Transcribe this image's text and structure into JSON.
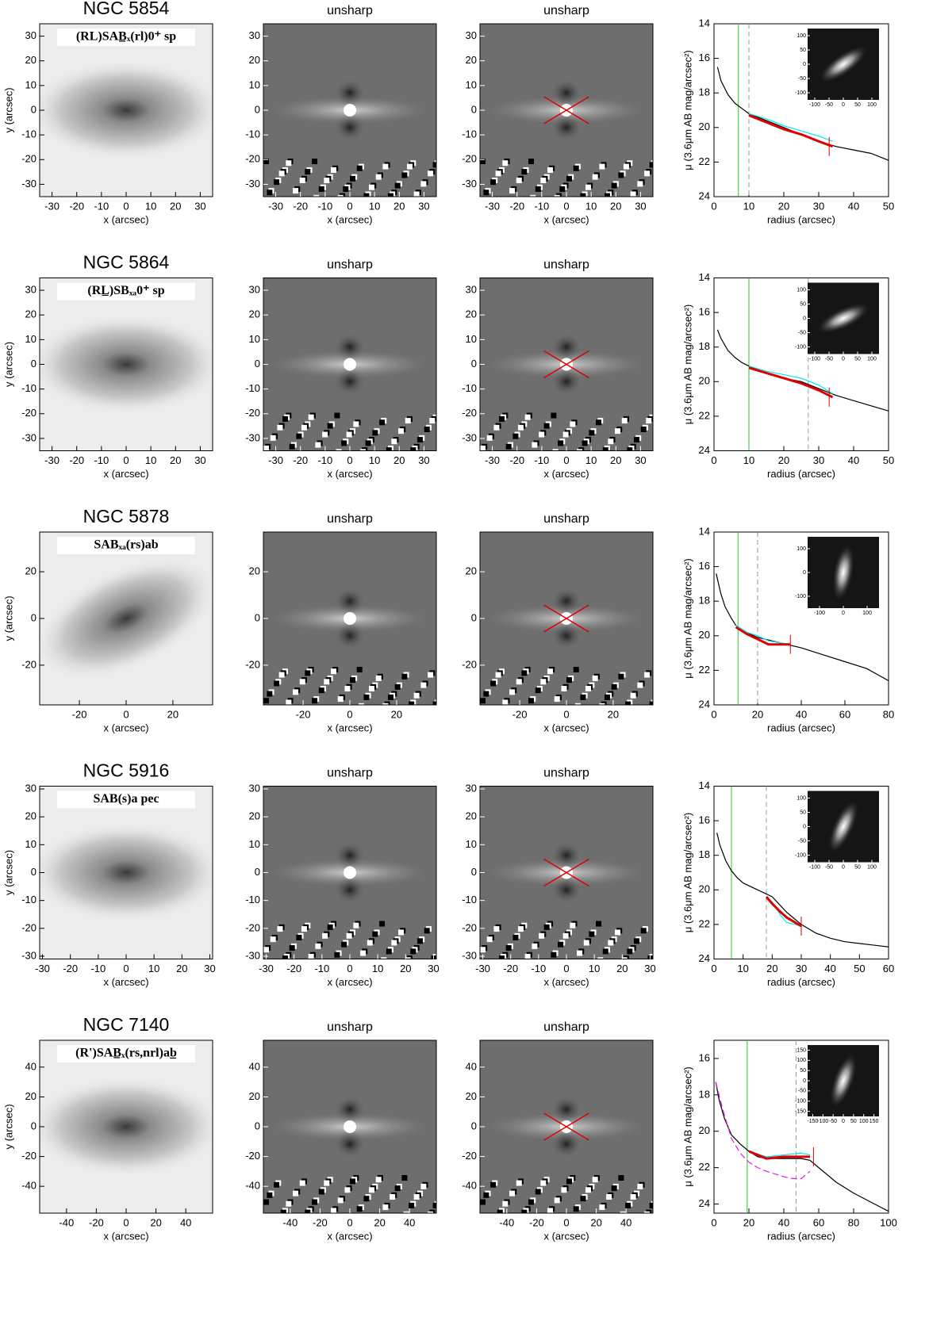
{
  "labels": {
    "unsharp": "unsharp",
    "x_axis": "x (arcsec)",
    "y_axis": "y (arcsec)",
    "radius_axis": "radius (arcsec)",
    "mu_axis": "μ (3.6μm AB mag/arcsec²)"
  },
  "rows": [
    {
      "name": "NGC 5854",
      "classification": "(RL)SAB̲ₓ(rl)0⁺ sp",
      "image": {
        "lim": [
          -35,
          35
        ],
        "ticks": [
          -30,
          -20,
          -10,
          0,
          10,
          20,
          30
        ]
      },
      "profile": {
        "xlim": [
          0,
          50
        ],
        "xticks": [
          0,
          10,
          20,
          30,
          40,
          50
        ],
        "ylim": [
          24,
          14
        ],
        "yticks": [
          14,
          16,
          18,
          20,
          22,
          24
        ],
        "green_line": 7,
        "dashed_line": 10,
        "marker": {
          "x": 33,
          "y": 21.1
        },
        "series": [
          {
            "color": "#000000",
            "x": [
              1,
              2,
              4,
              6,
              8,
              10,
              15,
              20,
              25,
              30,
              35,
              40,
              45,
              50
            ],
            "values": [
              16.5,
              17.3,
              18.1,
              18.6,
              18.9,
              19.2,
              19.6,
              20.0,
              20.4,
              20.8,
              21.1,
              21.3,
              21.5,
              21.9
            ]
          },
          {
            "color": "#00e5ee",
            "x": [
              10,
              15,
              20,
              25,
              30,
              34
            ],
            "values": [
              19.2,
              19.5,
              19.9,
              20.2,
              20.5,
              20.8
            ]
          },
          {
            "color": "#e00000",
            "x": [
              10,
              15,
              20,
              25,
              30,
              34
            ],
            "values": [
              19.3,
              19.7,
              20.1,
              20.4,
              20.8,
              21.1
            ]
          }
        ],
        "inset": {
          "lim": [
            -125,
            125
          ],
          "xticks": [
            -100,
            -50,
            0,
            50,
            100
          ],
          "yticks": [
            100,
            50,
            0,
            -50,
            -100
          ]
        }
      }
    },
    {
      "name": "NGC 5864",
      "classification": "(RL̲)SBₓₐ0⁺ sp",
      "image": {
        "lim": [
          -35,
          35
        ],
        "ticks": [
          -30,
          -20,
          -10,
          0,
          10,
          20,
          30
        ]
      },
      "profile": {
        "xlim": [
          0,
          50
        ],
        "xticks": [
          0,
          10,
          20,
          30,
          40,
          50
        ],
        "ylim": [
          24,
          14
        ],
        "yticks": [
          14,
          16,
          18,
          20,
          22,
          24
        ],
        "green_line": 10,
        "dashed_line": 27,
        "marker": {
          "x": 33,
          "y": 20.9
        },
        "series": [
          {
            "color": "#000000",
            "x": [
              1,
              2,
              4,
              6,
              8,
              10,
              15,
              20,
              25,
              30,
              35,
              40,
              45,
              50
            ],
            "values": [
              17,
              17.5,
              18.2,
              18.6,
              18.9,
              19.1,
              19.5,
              19.8,
              20.0,
              20.4,
              20.8,
              21.1,
              21.4,
              21.7
            ]
          },
          {
            "color": "#00e5ee",
            "x": [
              10,
              15,
              20,
              25,
              30,
              34
            ],
            "values": [
              19.1,
              19.4,
              19.6,
              19.8,
              20.2,
              20.7
            ]
          },
          {
            "color": "#e00000",
            "x": [
              10,
              15,
              20,
              25,
              30,
              34
            ],
            "values": [
              19.2,
              19.5,
              19.8,
              20.1,
              20.5,
              20.9
            ]
          }
        ],
        "inset": {
          "lim": [
            -125,
            125
          ],
          "xticks": [
            -100,
            -50,
            0,
            50,
            100
          ],
          "yticks": [
            100,
            50,
            0,
            -50,
            -100
          ]
        }
      }
    },
    {
      "name": "NGC 5878",
      "classification": "SABₓₐ(rs)ab",
      "image": {
        "lim": [
          -37,
          37
        ],
        "ticks": [
          -20,
          0,
          20
        ]
      },
      "profile": {
        "xlim": [
          0,
          80
        ],
        "xticks": [
          0,
          20,
          40,
          60,
          80
        ],
        "ylim": [
          24,
          14
        ],
        "yticks": [
          14,
          16,
          18,
          20,
          22,
          24
        ],
        "green_line": 11,
        "dashed_line": 20,
        "marker": {
          "x": 35,
          "y": 20.5
        },
        "series": [
          {
            "color": "#000000",
            "x": [
              1,
              3,
              5,
              8,
              10,
              15,
              20,
              30,
              40,
              50,
              60,
              70,
              80
            ],
            "values": [
              16.4,
              17.5,
              18.3,
              19.0,
              19.4,
              19.8,
              20.1,
              20.4,
              20.7,
              21.1,
              21.5,
              21.9,
              22.6
            ]
          },
          {
            "color": "#00e5ee",
            "x": [
              10,
              15,
              20,
              25,
              30,
              35
            ],
            "values": [
              19.4,
              19.8,
              20.0,
              20.3,
              20.4,
              20.5
            ]
          },
          {
            "color": "#e00000",
            "x": [
              10,
              15,
              20,
              25,
              30,
              35
            ],
            "values": [
              19.5,
              19.9,
              20.2,
              20.5,
              20.5,
              20.5
            ]
          }
        ],
        "inset": {
          "lim": [
            -150,
            150
          ],
          "xticks": [
            -100,
            0,
            100
          ],
          "yticks": [
            100,
            0,
            -100
          ]
        }
      }
    },
    {
      "name": "NGC 5916",
      "classification": "SAB(s)a pec",
      "image": {
        "lim": [
          -31,
          31
        ],
        "ticks": [
          -30,
          -20,
          -10,
          0,
          10,
          20,
          30
        ]
      },
      "profile": {
        "xlim": [
          0,
          60
        ],
        "xticks": [
          0,
          10,
          20,
          30,
          40,
          50,
          60
        ],
        "ylim": [
          24,
          14
        ],
        "yticks": [
          14,
          16,
          18,
          20,
          22,
          24
        ],
        "green_line": 6,
        "dashed_line": 18,
        "marker": {
          "x": 30,
          "y": 22.1
        },
        "series": [
          {
            "color": "#000000",
            "x": [
              1,
              2,
              4,
              6,
              8,
              10,
              15,
              20,
              25,
              30,
              35,
              40,
              45,
              50,
              55,
              60
            ],
            "values": [
              16.7,
              17.4,
              18.3,
              18.9,
              19.3,
              19.6,
              20.0,
              20.4,
              21.3,
              22.0,
              22.5,
              22.8,
              23.0,
              23.1,
              23.2,
              23.3
            ]
          },
          {
            "color": "#00e5ee",
            "x": [
              18,
              20,
              23,
              25,
              28,
              30
            ],
            "values": [
              20.4,
              20.7,
              21.5,
              21.9,
              22.0,
              22.1
            ]
          },
          {
            "color": "#e00000",
            "x": [
              18,
              20,
              23,
              25,
              28,
              30
            ],
            "values": [
              20.4,
              20.8,
              21.3,
              21.6,
              21.9,
              22.1
            ]
          }
        ],
        "inset": {
          "lim": [
            -125,
            125
          ],
          "xticks": [
            -100,
            -50,
            0,
            50,
            100
          ],
          "yticks": [
            100,
            50,
            0,
            -50,
            -100
          ]
        }
      }
    },
    {
      "name": "NGC 7140",
      "classification": "(R')SAB̲ₓ(rs,nrl)ab̲",
      "image": {
        "lim": [
          -58,
          58
        ],
        "ticks": [
          -40,
          -20,
          0,
          20,
          40
        ]
      },
      "profile": {
        "xlim": [
          0,
          100
        ],
        "xticks": [
          0,
          20,
          40,
          60,
          80,
          100
        ],
        "ylim": [
          24.5,
          15
        ],
        "yticks": [
          16,
          18,
          20,
          22,
          24
        ],
        "green_line": 19,
        "dashed_line": 47,
        "marker": {
          "x": 57,
          "y": 21.4
        },
        "series": [
          {
            "color": "#000000",
            "x": [
              1,
              3,
              6,
              10,
              15,
              20,
              25,
              30,
              40,
              50,
              55,
              60,
              70,
              80,
              90,
              100
            ],
            "values": [
              17.3,
              18.3,
              19.3,
              20.2,
              20.7,
              21.1,
              21.4,
              21.5,
              21.5,
              21.5,
              21.6,
              22.0,
              22.8,
              23.4,
              23.9,
              24.4
            ]
          },
          {
            "color": "#00e5ee",
            "x": [
              20,
              30,
              40,
              50,
              55
            ],
            "values": [
              21.1,
              21.4,
              21.3,
              21.2,
              21.3
            ]
          },
          {
            "color": "#e00000",
            "x": [
              20,
              30,
              40,
              50,
              55
            ],
            "values": [
              21.1,
              21.5,
              21.4,
              21.4,
              21.4
            ]
          },
          {
            "color": "#e020e0",
            "dashed": true,
            "x": [
              1,
              5,
              10,
              15,
              20,
              25,
              30,
              40,
              45,
              50,
              55
            ],
            "values": [
              17.3,
              18.8,
              20.4,
              21.2,
              21.7,
              22.0,
              22.2,
              22.5,
              22.6,
              22.6,
              22.2
            ]
          }
        ],
        "inset": {
          "lim": [
            -175,
            175
          ],
          "xticks": [
            -150,
            -100,
            -50,
            0,
            50,
            100,
            150
          ],
          "yticks": [
            150,
            100,
            50,
            0,
            -50,
            -100,
            -150
          ]
        }
      }
    }
  ]
}
